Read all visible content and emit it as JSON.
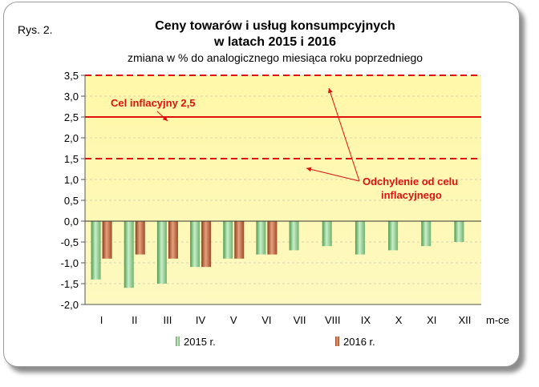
{
  "figure_label": "Rys. 2.",
  "chart_data": {
    "type": "bar",
    "title": "Ceny towarów i usług konsumpcyjnych",
    "title_line2": "w latach 2015 i 2016",
    "subtitle": "zmiana w % do analogicznego miesiąca roku poprzedniego",
    "xlabel": "m-ce",
    "ylabel": "",
    "categories": [
      "I",
      "II",
      "III",
      "IV",
      "V",
      "VI",
      "VII",
      "VIII",
      "IX",
      "X",
      "XI",
      "XII"
    ],
    "series": [
      {
        "name": "2015 r.",
        "values": [
          -1.4,
          -1.6,
          -1.5,
          -1.1,
          -0.9,
          -0.8,
          -0.7,
          -0.6,
          -0.8,
          -0.7,
          -0.6,
          -0.5
        ],
        "color": "#7fbf7f"
      },
      {
        "name": "2016 r.",
        "values": [
          -0.9,
          -0.8,
          -0.9,
          -1.1,
          -0.9,
          -0.8,
          null,
          null,
          null,
          null,
          null,
          null
        ],
        "color": "#b5603a"
      }
    ],
    "ylim": [
      -2.0,
      3.5
    ],
    "yticks": [
      "3,5",
      "3,0",
      "2,5",
      "2,0",
      "1,5",
      "1,0",
      "0,5",
      "0,0",
      "-0,5",
      "-1,0",
      "-1,5",
      "-2,0"
    ],
    "ytick_values": [
      3.5,
      3.0,
      2.5,
      2.0,
      1.5,
      1.0,
      0.5,
      0.0,
      -0.5,
      -1.0,
      -1.5,
      -2.0
    ],
    "reference_lines": [
      {
        "value": 2.5,
        "style": "solid",
        "color": "#e01010"
      },
      {
        "value": 3.5,
        "style": "dashed",
        "color": "#e01010"
      },
      {
        "value": 1.5,
        "style": "dashed",
        "color": "#e01010"
      }
    ],
    "annotations": {
      "target": "Cel inflacyjny 2,5",
      "deviation_line1": "Odchylenie od celu",
      "deviation_line2": "inflacyjnego"
    },
    "grid": true,
    "legend_position": "bottom",
    "plot_background": "#fdf9c0",
    "plot_background_top": "#fff8a8"
  }
}
